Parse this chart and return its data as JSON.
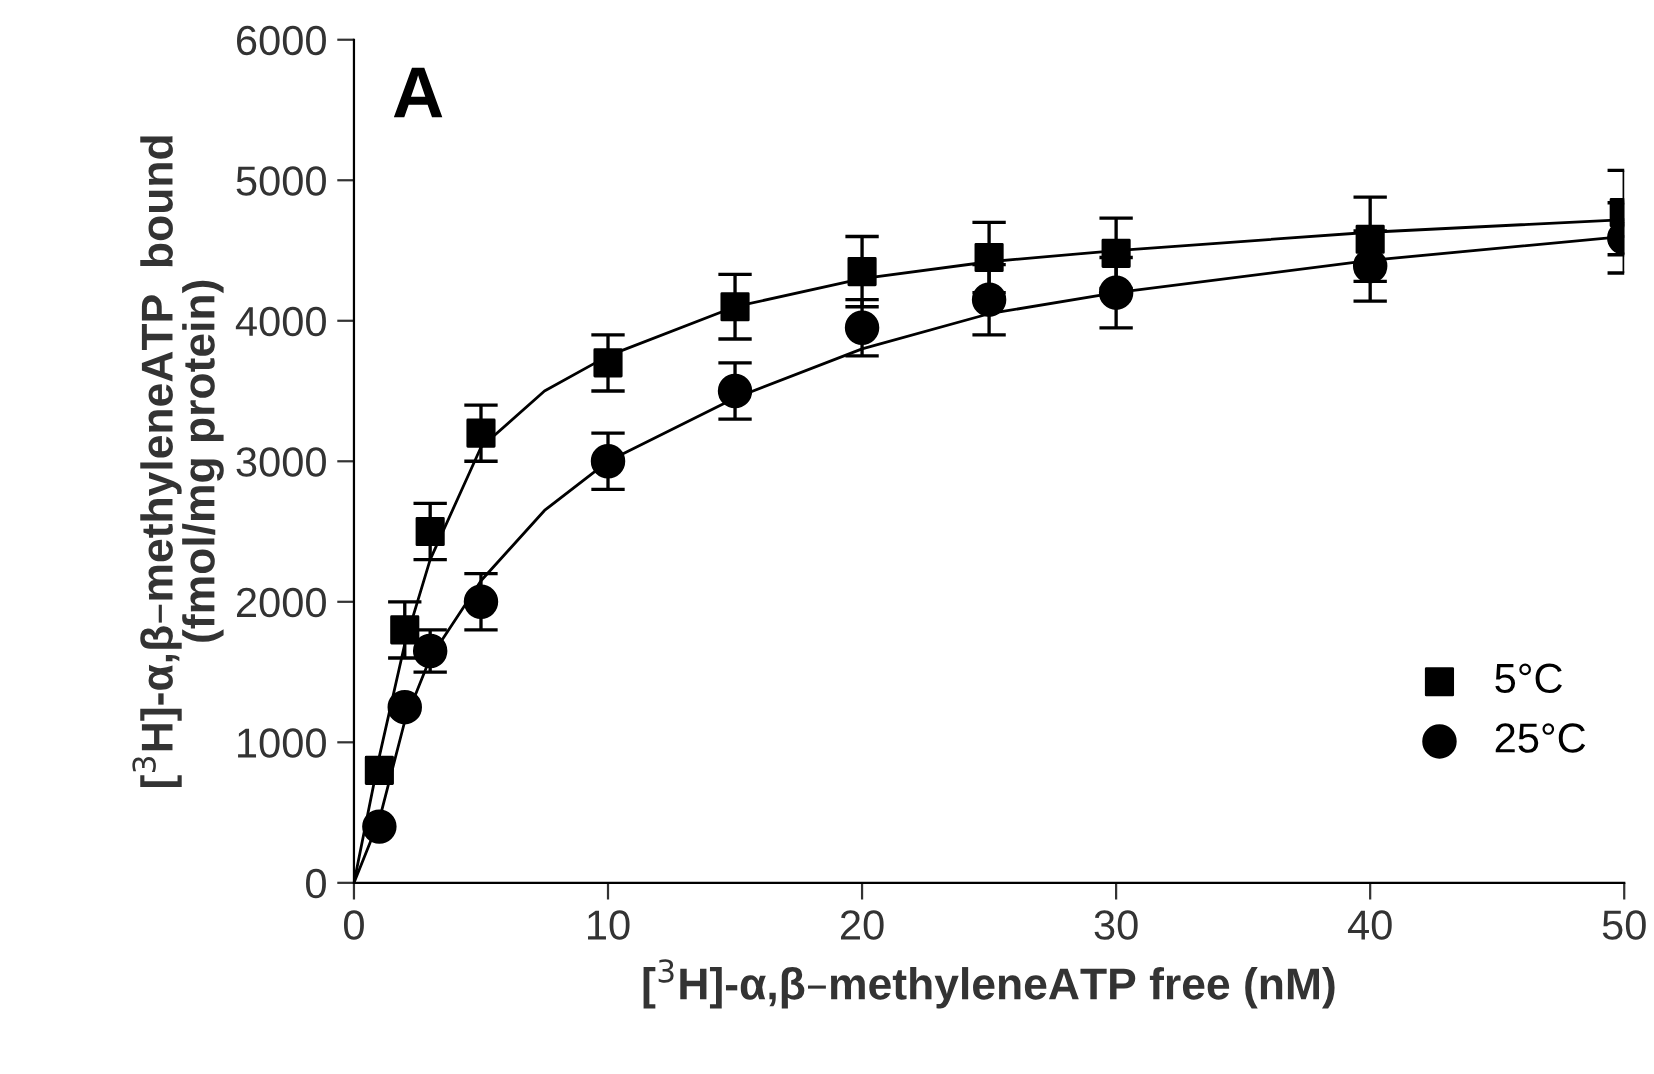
{
  "chart_data": {
    "type": "scatter",
    "xlabel": "[$^{3}$H]-α,β–methyleneATP free (nM)",
    "ylabel": "[$^{3}$H]-α,β–methyleneATP  bound\n(fmol/mg protein)",
    "annotations": [
      "A"
    ],
    "xlim": [
      0,
      50
    ],
    "ylim": [
      0,
      6000
    ],
    "xticks": [
      0,
      10,
      20,
      30,
      40,
      50
    ],
    "yticks": [
      0,
      1000,
      2000,
      3000,
      4000,
      5000,
      6000
    ],
    "grid": false,
    "legend": "bottom right",
    "series": [
      {
        "name": "5°C",
        "color": "#000000",
        "marker": "square",
        "x": [
          1,
          2,
          3,
          5,
          10,
          15,
          20,
          25,
          30,
          40,
          50
        ],
        "values": [
          800,
          1800,
          2500,
          3200,
          3700,
          4100,
          4350,
          4450,
          4480,
          4580,
          4770
        ],
        "errors": [
          null,
          200,
          200,
          200,
          200,
          230,
          250,
          250,
          250,
          300,
          300
        ]
      },
      {
        "name": "25°C",
        "color": "#000000",
        "marker": "circle",
        "x": [
          1,
          2,
          3,
          5,
          10,
          15,
          20,
          25,
          30,
          40,
          50
        ],
        "values": [
          400,
          1250,
          1650,
          2000,
          3000,
          3500,
          3950,
          4150,
          4200,
          4390,
          4590
        ],
        "errors": [
          null,
          null,
          150,
          200,
          200,
          200,
          200,
          250,
          250,
          250,
          250
        ]
      },
      {
        "type": "line",
        "color": "#000000",
        "x": [
          0,
          1,
          2,
          3,
          5,
          7.5,
          10,
          15,
          20,
          25,
          30,
          40,
          50
        ],
        "values": [
          0,
          900,
          1700,
          2300,
          3100,
          3500,
          3750,
          4100,
          4300,
          4420,
          4500,
          4630,
          4720
        ]
      },
      {
        "type": "line",
        "color": "#000000",
        "x": [
          0,
          1,
          2,
          3,
          5,
          7.5,
          10,
          15,
          20,
          25,
          30,
          40,
          50
        ],
        "values": [
          0,
          450,
          1150,
          1600,
          2150,
          2650,
          3000,
          3450,
          3800,
          4050,
          4200,
          4430,
          4600
        ]
      }
    ]
  }
}
